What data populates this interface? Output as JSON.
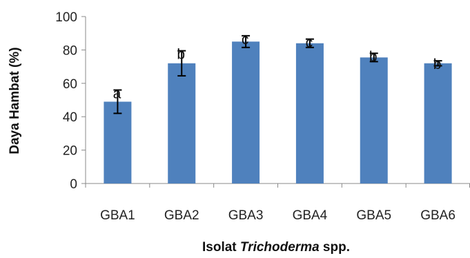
{
  "chart_data": {
    "type": "bar",
    "categories": [
      "GBA1",
      "GBA2",
      "GBA3",
      "GBA4",
      "GBA5",
      "GBA6"
    ],
    "values": [
      49,
      72,
      85,
      84,
      75.5,
      72
    ],
    "errors": [
      7,
      7.5,
      3.5,
      2.5,
      2.5,
      1.5
    ],
    "data_labels": [
      "a",
      "b",
      "c",
      "c",
      "b",
      "b"
    ],
    "ylabel": "Daya Hambat (%)",
    "xlabel_prefix": "Isolat ",
    "xlabel_italic": "Trichoderma",
    "xlabel_suffix": " spp.",
    "ylim": [
      0,
      100
    ],
    "yticks": [
      "0",
      "20",
      "40",
      "60",
      "80",
      "100"
    ],
    "grid": false,
    "bar_color": "#4f81bd"
  }
}
